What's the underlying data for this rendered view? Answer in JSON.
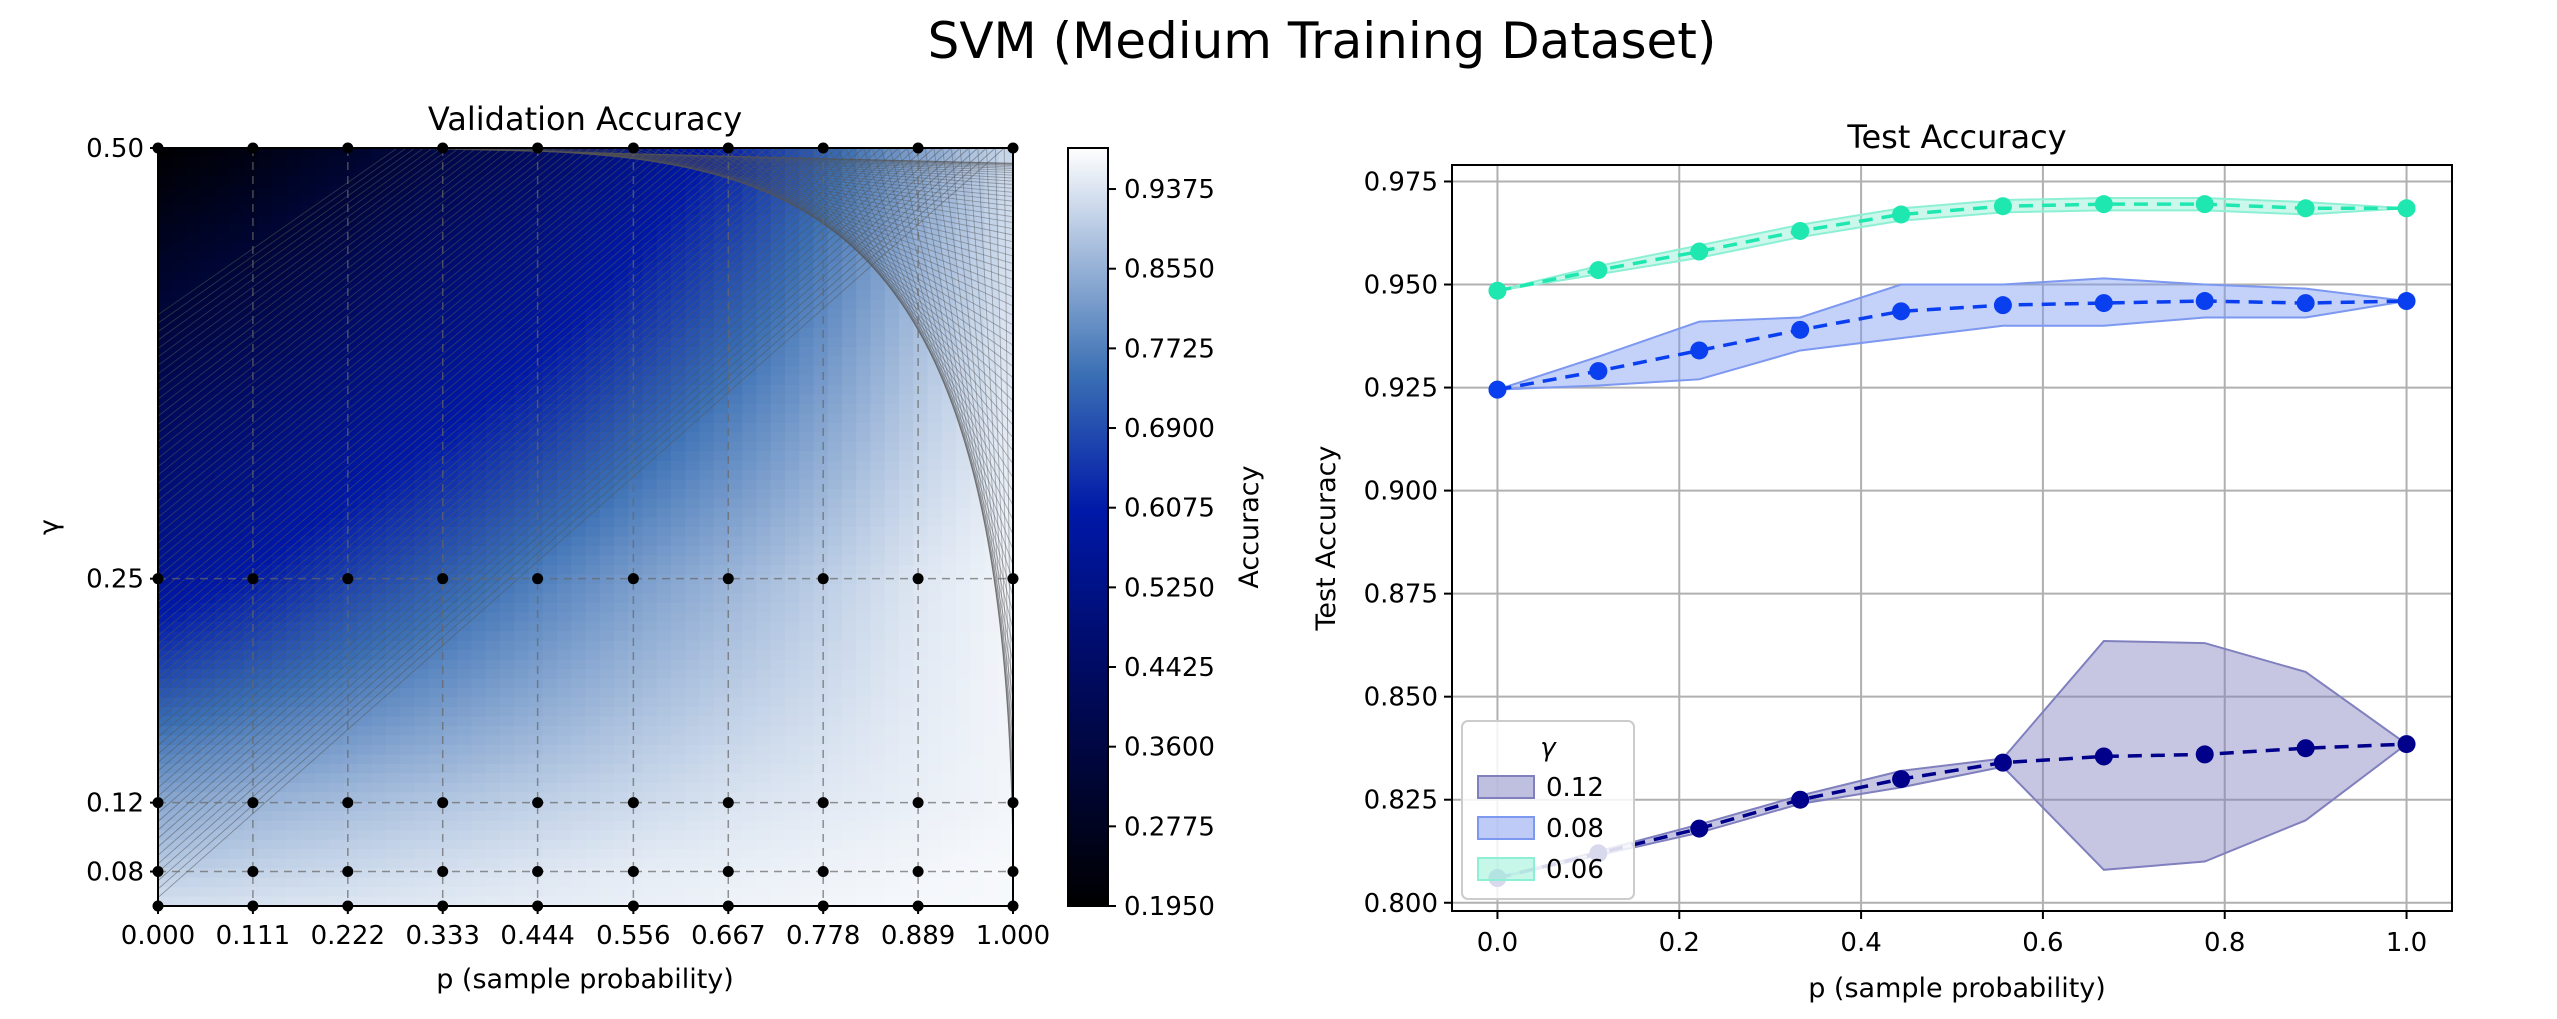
{
  "figure": {
    "title": "SVM (Medium Training Dataset)"
  },
  "chart_data": [
    {
      "type": "heatmap",
      "title": "Validation Accuracy",
      "xlabel": "p (sample probability)",
      "ylabel": "γ",
      "x": [
        0.0,
        0.111,
        0.222,
        0.333,
        0.444,
        0.556,
        0.667,
        0.778,
        0.889,
        1.0
      ],
      "x_ticks": [
        "0.000",
        "0.111",
        "0.222",
        "0.333",
        "0.444",
        "0.556",
        "0.667",
        "0.778",
        "0.889",
        "1.000"
      ],
      "y": [
        0.06,
        0.08,
        0.12,
        0.25,
        0.5
      ],
      "y_ticks": [
        "0.08",
        "0.12",
        "0.25",
        "0.50"
      ],
      "ylim": [
        0.06,
        0.5
      ],
      "colormap": "blues_reversed",
      "colorbar": {
        "label": "Accuracy",
        "min": 0.195,
        "max": 0.98,
        "ticks": [
          "0.1950",
          "0.2775",
          "0.3600",
          "0.4425",
          "0.5250",
          "0.6075",
          "0.6900",
          "0.7725",
          "0.8550",
          "0.9375"
        ]
      },
      "values_rows_by_gamma": {
        "0.5": [
          0.195,
          0.24,
          0.3,
          0.37,
          0.44,
          0.53,
          0.62,
          0.72,
          0.83,
          0.92
        ],
        "0.25": [
          0.56,
          0.61,
          0.67,
          0.72,
          0.77,
          0.82,
          0.86,
          0.9,
          0.94,
          0.965
        ],
        "0.12": [
          0.84,
          0.86,
          0.875,
          0.89,
          0.905,
          0.92,
          0.935,
          0.945,
          0.955,
          0.965
        ],
        "0.08": [
          0.9,
          0.91,
          0.92,
          0.93,
          0.94,
          0.95,
          0.955,
          0.96,
          0.965,
          0.97
        ],
        "0.06": [
          0.93,
          0.935,
          0.94,
          0.945,
          0.95,
          0.955,
          0.96,
          0.965,
          0.968,
          0.97
        ]
      },
      "grid": true
    },
    {
      "type": "line",
      "title": "Test Accuracy",
      "xlabel": "p (sample probability)",
      "ylabel": "Test Accuracy",
      "xlim": [
        -0.05,
        1.05
      ],
      "ylim": [
        0.798,
        0.979
      ],
      "x_ticks": [
        "0.0",
        "0.2",
        "0.4",
        "0.6",
        "0.8",
        "1.0"
      ],
      "x_tick_values": [
        0.0,
        0.2,
        0.4,
        0.6,
        0.8,
        1.0
      ],
      "y_ticks": [
        "0.800",
        "0.825",
        "0.850",
        "0.875",
        "0.900",
        "0.925",
        "0.950",
        "0.975"
      ],
      "y_tick_values": [
        0.8,
        0.825,
        0.85,
        0.875,
        0.9,
        0.925,
        0.95,
        0.975
      ],
      "x": [
        0.0,
        0.111,
        0.222,
        0.333,
        0.444,
        0.556,
        0.667,
        0.778,
        0.889,
        1.0
      ],
      "grid": true,
      "legend": {
        "title": "γ",
        "placement": "lower-left"
      },
      "series": [
        {
          "name": "0.12",
          "color": "#00008b",
          "band_color": "#8080bf",
          "values": [
            0.806,
            0.812,
            0.818,
            0.825,
            0.83,
            0.834,
            0.8355,
            0.836,
            0.8375,
            0.8385
          ],
          "lower": [
            0.806,
            0.8115,
            0.817,
            0.824,
            0.828,
            0.833,
            0.808,
            0.81,
            0.82,
            0.8385
          ],
          "upper": [
            0.806,
            0.8125,
            0.819,
            0.826,
            0.832,
            0.835,
            0.8635,
            0.863,
            0.856,
            0.8385
          ]
        },
        {
          "name": "0.08",
          "color": "#0a3ff0",
          "band_color": "#7d98f0",
          "values": [
            0.9245,
            0.929,
            0.934,
            0.939,
            0.9435,
            0.945,
            0.9455,
            0.946,
            0.9455,
            0.946
          ],
          "lower": [
            0.9245,
            0.9255,
            0.927,
            0.934,
            0.937,
            0.94,
            0.94,
            0.942,
            0.942,
            0.946
          ],
          "upper": [
            0.9245,
            0.9325,
            0.941,
            0.942,
            0.95,
            0.95,
            0.9515,
            0.95,
            0.949,
            0.946
          ]
        },
        {
          "name": "0.06",
          "color": "#1ee8b0",
          "band_color": "#8df0d4",
          "values": [
            0.9485,
            0.9535,
            0.958,
            0.963,
            0.967,
            0.969,
            0.9695,
            0.9695,
            0.9685,
            0.9685
          ],
          "lower": [
            0.9485,
            0.9525,
            0.9565,
            0.9615,
            0.9655,
            0.9675,
            0.968,
            0.968,
            0.967,
            0.9685
          ],
          "upper": [
            0.9485,
            0.9545,
            0.9595,
            0.9645,
            0.9685,
            0.9705,
            0.971,
            0.971,
            0.97,
            0.9685
          ]
        }
      ]
    }
  ]
}
